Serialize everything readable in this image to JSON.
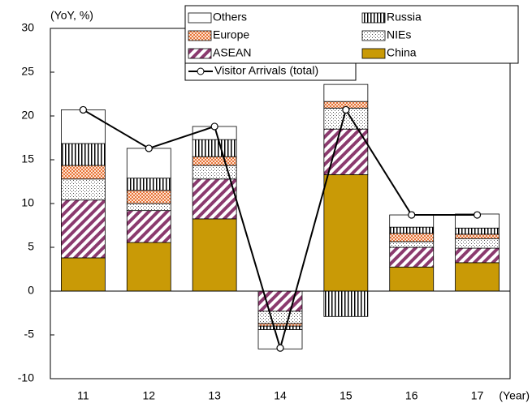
{
  "chart_data": {
    "type": "bar",
    "y_label": "(YoY, %)",
    "x_label": "(Year)",
    "categories": [
      "11",
      "12",
      "13",
      "14",
      "15",
      "16",
      "17"
    ],
    "ylim": [
      -10,
      30
    ],
    "yticks": [
      -10,
      -5,
      0,
      5,
      10,
      15,
      20,
      25,
      30
    ],
    "series": [
      {
        "name": "China",
        "color": "#c99a06",
        "pattern": "solid",
        "values": [
          3.8,
          5.55,
          8.25,
          0,
          13.3,
          2.75,
          3.25
        ]
      },
      {
        "name": "ASEAN",
        "color": "#8b3a6e",
        "pattern": "diagonal",
        "values": [
          6.6,
          3.65,
          4.55,
          -2.3,
          5.2,
          2.25,
          1.65
        ]
      },
      {
        "name": "NIEs",
        "color": "#555555",
        "pattern": "dots",
        "values": [
          2.4,
          0.8,
          1.55,
          -1.4,
          2.4,
          0.65,
          1.1
        ]
      },
      {
        "name": "Europe",
        "color": "#e8743b",
        "pattern": "cross",
        "values": [
          1.55,
          1.5,
          1.0,
          -0.3,
          0.75,
          0.95,
          0.5
        ]
      },
      {
        "name": "Russia",
        "color": "#000000",
        "pattern": "vertical",
        "values": [
          2.5,
          1.4,
          1.95,
          -0.4,
          -2.9,
          0.7,
          0.7
        ]
      },
      {
        "name": "Others",
        "color": "#ffffff",
        "pattern": "solid",
        "values": [
          3.85,
          3.4,
          1.5,
          -2.2,
          1.95,
          1.4,
          1.6
        ]
      }
    ],
    "line_series": {
      "name": "Visitor Arrivals (total)",
      "color": "#000000",
      "values": [
        20.7,
        16.3,
        18.8,
        -6.5,
        20.7,
        8.7,
        8.7
      ]
    }
  }
}
